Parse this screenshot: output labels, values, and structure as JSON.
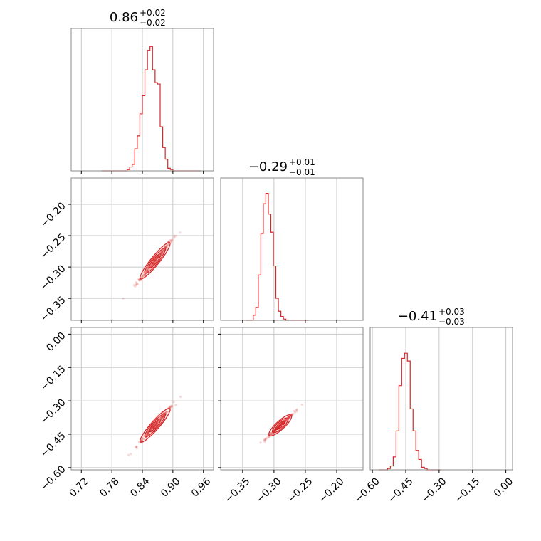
{
  "chart_data": {
    "type": "corner",
    "color": "#d62728",
    "grid": true,
    "parameters": [
      {
        "title_value": "0.86",
        "title_plus": "+0.02",
        "title_minus": "−0.02",
        "range": [
          0.7,
          0.98
        ],
        "ticks": [
          0.72,
          0.78,
          0.84,
          0.9,
          0.96
        ],
        "tick_labels": [
          "0.72",
          "0.78",
          "0.84",
          "0.90",
          "0.96"
        ],
        "bins_x": [
          0.76,
          0.77,
          0.78,
          0.79,
          0.8,
          0.81,
          0.815,
          0.82,
          0.825,
          0.83,
          0.835,
          0.84,
          0.845,
          0.85,
          0.855,
          0.86,
          0.865,
          0.87,
          0.875,
          0.88,
          0.885,
          0.89,
          0.895,
          0.9,
          0.905,
          0.91,
          0.915,
          0.92,
          0.93,
          0.94,
          0.95
        ],
        "hist": [
          0,
          0,
          0,
          0,
          0,
          0.01,
          0.03,
          0.05,
          0.17,
          0.27,
          0.44,
          0.58,
          0.78,
          0.93,
          0.96,
          0.78,
          0.68,
          0.67,
          0.34,
          0.18,
          0.09,
          0.02,
          0.01,
          0,
          0,
          0,
          0,
          0,
          0,
          0,
          0
        ]
      },
      {
        "title_value": "−0.29",
        "title_plus": "+0.01",
        "title_minus": "−0.01",
        "range": [
          -0.385,
          -0.158
        ],
        "ticks": [
          -0.35,
          -0.3,
          -0.25,
          -0.2
        ],
        "tick_labels": [
          "−0.35",
          "−0.30",
          "−0.25",
          "−0.20"
        ],
        "hist": [
          0,
          0,
          0,
          0.04,
          0.1,
          0.35,
          0.67,
          0.9,
          0.98,
          0.82,
          0.68,
          0.42,
          0.17,
          0.07,
          0.03,
          0.01,
          0,
          0,
          0,
          0,
          0,
          0,
          0,
          0,
          0
        ],
        "hist_range": [
          -0.345,
          -0.245
        ]
      },
      {
        "title_value": "−0.41",
        "title_plus": "+0.03",
        "title_minus": "−0.03",
        "range": [
          -0.61,
          0.03
        ],
        "ticks": [
          -0.6,
          -0.45,
          -0.3,
          -0.15,
          0.0
        ],
        "tick_labels": [
          "−0.60",
          "−0.45",
          "−0.30",
          "−0.15",
          "0.00"
        ],
        "hist": [
          0,
          0,
          0,
          0.01,
          0.03,
          0.1,
          0.3,
          0.65,
          0.86,
          0.9,
          0.84,
          0.47,
          0.3,
          0.15,
          0.08,
          0.02,
          0.01,
          0,
          0,
          0,
          0,
          0
        ],
        "hist_range": [
          -0.57,
          -0.29
        ]
      }
    ],
    "correlations": [
      {
        "pair": [
          0,
          1
        ],
        "center": [
          0.865,
          -0.29
        ],
        "slope": 1.0
      },
      {
        "pair": [
          0,
          2
        ],
        "center": [
          0.865,
          -0.41
        ],
        "slope": 2.6
      },
      {
        "pair": [
          1,
          2
        ],
        "center": [
          -0.29,
          -0.41
        ],
        "slope": 2.6
      }
    ]
  }
}
